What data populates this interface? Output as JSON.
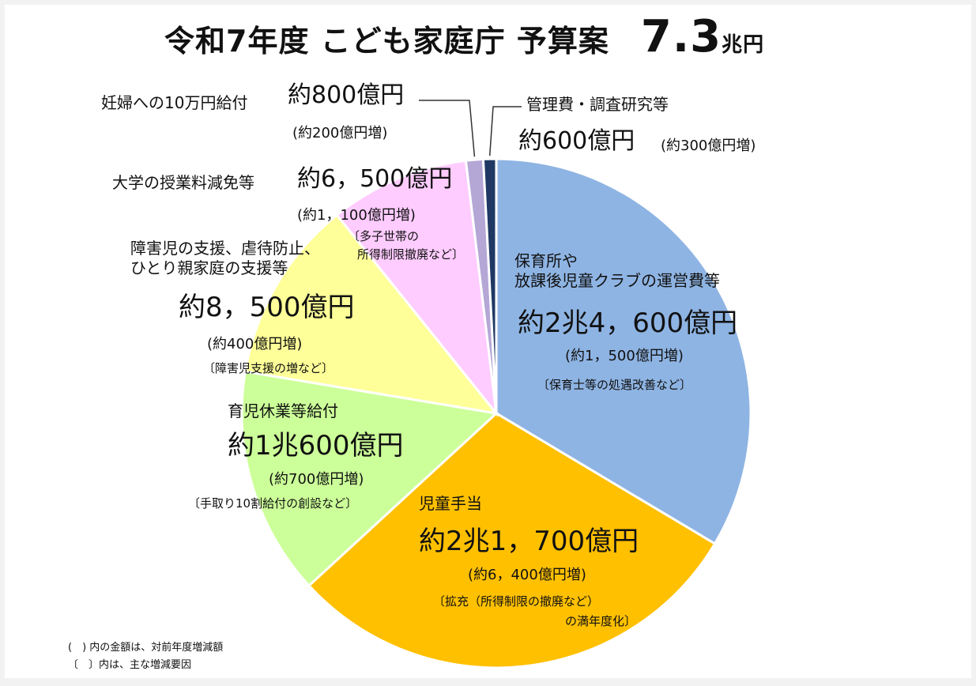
{
  "title": {
    "text": "令和7年度 こども家庭庁 予算案",
    "total": "7.3",
    "total_unit": "兆円"
  },
  "chart_data": {
    "type": "pie",
    "title": "令和7年度 こども家庭庁 予算案 7.3兆円",
    "unit": "億円",
    "slices": [
      {
        "name": "保育所や放課後児童クラブの運営費等",
        "value": 24600,
        "amount": "約2兆4，600億円",
        "increase": "(約1，500億円増)",
        "note": "〔保育士等の処遇改善など〕",
        "color": "#8eb4e3"
      },
      {
        "name": "児童手当",
        "value": 21700,
        "amount": "約2兆1，700億円",
        "increase": "(約6，400億円増)",
        "note": "〔拡充（所得制限の撤廃など）の満年度化〕",
        "color": "#ffc000"
      },
      {
        "name": "育児休業等給付",
        "value": 10600,
        "amount": "約1兆600億円",
        "increase": "(約700億円増)",
        "note": "〔手取り10割給付の創設など〕",
        "color": "#ccff99"
      },
      {
        "name": "障害児の支援、虐待防止、ひとり親家庭の支援等",
        "value": 8500,
        "amount": "約8，500億円",
        "increase": "(約400億円増)",
        "note": "〔障害児支援の増など〕",
        "color": "#ffff99"
      },
      {
        "name": "大学の授業料減免等",
        "value": 6500,
        "amount": "約6，500億円",
        "increase": "(約1，100億円増)",
        "note": "〔多子世帯の所得制限撤廃など〕",
        "color": "#ffccff"
      },
      {
        "name": "妊婦への10万円給付",
        "value": 800,
        "amount": "約800億円",
        "increase": "(約200億円増)",
        "note": "",
        "color": "#b4a7d6"
      },
      {
        "name": "管理費・調査研究等",
        "value": 600,
        "amount": "約600億円",
        "increase": "(約300億円増)",
        "note": "",
        "color": "#1f3864"
      }
    ]
  },
  "labels": {
    "hoiku": {
      "name1": "保育所や",
      "name2": "放課後児童クラブの運営費等",
      "amount": "約2兆4，600億円",
      "increase": "(約1，500億円増)",
      "note": "〔保育士等の処遇改善など〕"
    },
    "jido": {
      "name": "児童手当",
      "amount": "約2兆1，700億円",
      "increase": "(約6，400億円増)",
      "note1": "〔拡充（所得制限の撤廃など）",
      "note2": "の満年度化〕"
    },
    "ikuji": {
      "name": "育児休業等給付",
      "amount": "約1兆600億円",
      "increase": "(約700億円増)",
      "note": "〔手取り10割給付の創設など〕"
    },
    "shogai": {
      "name1": "障害児の支援、虐待防止、",
      "name2": "ひとり親家庭の支援等",
      "amount": "約8，500億円",
      "increase": "(約400億円増)",
      "note": "〔障害児支援の増など〕"
    },
    "daigaku": {
      "name": "大学の授業料減免等",
      "amount": "約6，500億円",
      "increase": "(約1，100億円増)",
      "note1": "〔多子世帯の",
      "note2": "所得制限撤廃など〕"
    },
    "ninpu": {
      "name": "妊婦への10万円給付",
      "amount": "約800億円",
      "increase": "(約200億円増)"
    },
    "kanri": {
      "name": "管理費・調査研究等",
      "amount": "約600億円",
      "increase": "(約300億円増)"
    }
  },
  "footnotes": {
    "line1": "(　) 内の金額は、対前年度増減額",
    "line2": "〔　〕内は、主な増減要因"
  }
}
